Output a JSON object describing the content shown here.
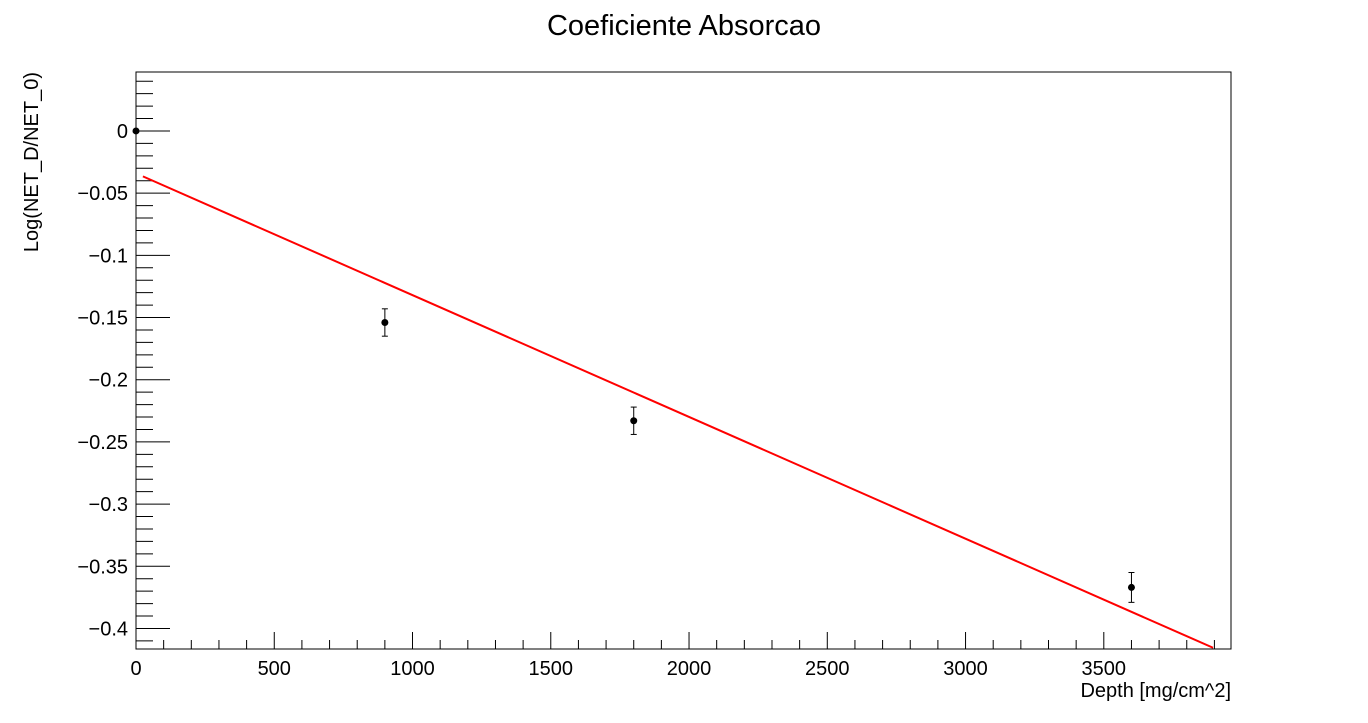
{
  "chart_data": {
    "type": "scatter",
    "title": "Coeficiente Absorcao",
    "xlabel": "Depth [mg/cm^2]",
    "ylabel": "Log(NET_D/NET_0)",
    "xlim": [
      0,
      3960
    ],
    "ylim": [
      -0.4165,
      0.0474
    ],
    "grid": false,
    "x_ticks": [
      0,
      500,
      1000,
      1500,
      2000,
      2500,
      3000,
      3500
    ],
    "x_tick_labels": [
      "0",
      "500",
      "1000",
      "1500",
      "2000",
      "2500",
      "3000",
      "3500"
    ],
    "y_ticks": [
      0,
      -0.05,
      -0.1,
      -0.15,
      -0.2,
      -0.25,
      -0.3,
      -0.35,
      -0.4
    ],
    "y_tick_labels": [
      "0",
      "−0.05",
      "−0.1",
      "−0.15",
      "−0.2",
      "−0.25",
      "−0.3",
      "−0.35",
      "−0.4"
    ],
    "series": [
      {
        "type": "scatter",
        "color": "#000000",
        "points": [
          {
            "x": 0,
            "y": 0,
            "err": 0
          },
          {
            "x": 900,
            "y": -0.154,
            "err": 0.011
          },
          {
            "x": 1800,
            "y": -0.233,
            "err": 0.011
          },
          {
            "x": 3600,
            "y": -0.367,
            "err": 0.012
          }
        ]
      },
      {
        "type": "line",
        "color": "#ff0000",
        "points": [
          {
            "x": 25,
            "y": -0.0365
          },
          {
            "x": 3895,
            "y": -0.4155
          }
        ]
      }
    ]
  }
}
